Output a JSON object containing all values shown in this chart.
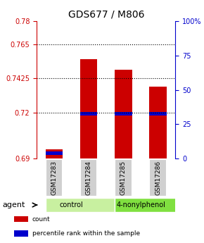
{
  "title": "GDS677 / M806",
  "samples": [
    "GSM17283",
    "GSM17284",
    "GSM17285",
    "GSM17286"
  ],
  "bar_bottoms": [
    0.69,
    0.69,
    0.69,
    0.69
  ],
  "bar_tops": [
    0.696,
    0.755,
    0.748,
    0.737
  ],
  "blue_bottoms": [
    0.6925,
    0.718,
    0.718,
    0.718
  ],
  "blue_tops": [
    0.6945,
    0.7205,
    0.7205,
    0.7205
  ],
  "ylim_left": [
    0.69,
    0.78
  ],
  "ylim_right": [
    0,
    100
  ],
  "yticks_left": [
    0.69,
    0.72,
    0.7425,
    0.765,
    0.78
  ],
  "yticks_right": [
    0,
    25,
    50,
    75,
    100
  ],
  "ytick_labels_left": [
    "0.69",
    "0.72",
    "0.7425",
    "0.765",
    "0.78"
  ],
  "ytick_labels_right": [
    "0",
    "25",
    "50",
    "75",
    "100%"
  ],
  "hlines": [
    0.765,
    0.7425,
    0.72
  ],
  "agent_groups": [
    {
      "label": "control",
      "span": [
        0,
        2
      ],
      "color": "#c8f0a0"
    },
    {
      "label": "4-nonylphenol",
      "span": [
        2,
        4
      ],
      "color": "#80e040"
    }
  ],
  "bar_color": "#cc0000",
  "blue_color": "#0000cc",
  "left_axis_color": "#cc0000",
  "right_axis_color": "#0000cc",
  "legend_items": [
    {
      "label": "count",
      "color": "#cc0000"
    },
    {
      "label": "percentile rank within the sample",
      "color": "#0000cc"
    }
  ],
  "bar_width": 0.5,
  "sample_box_color": "#d0d0d0",
  "agent_label": "agent"
}
